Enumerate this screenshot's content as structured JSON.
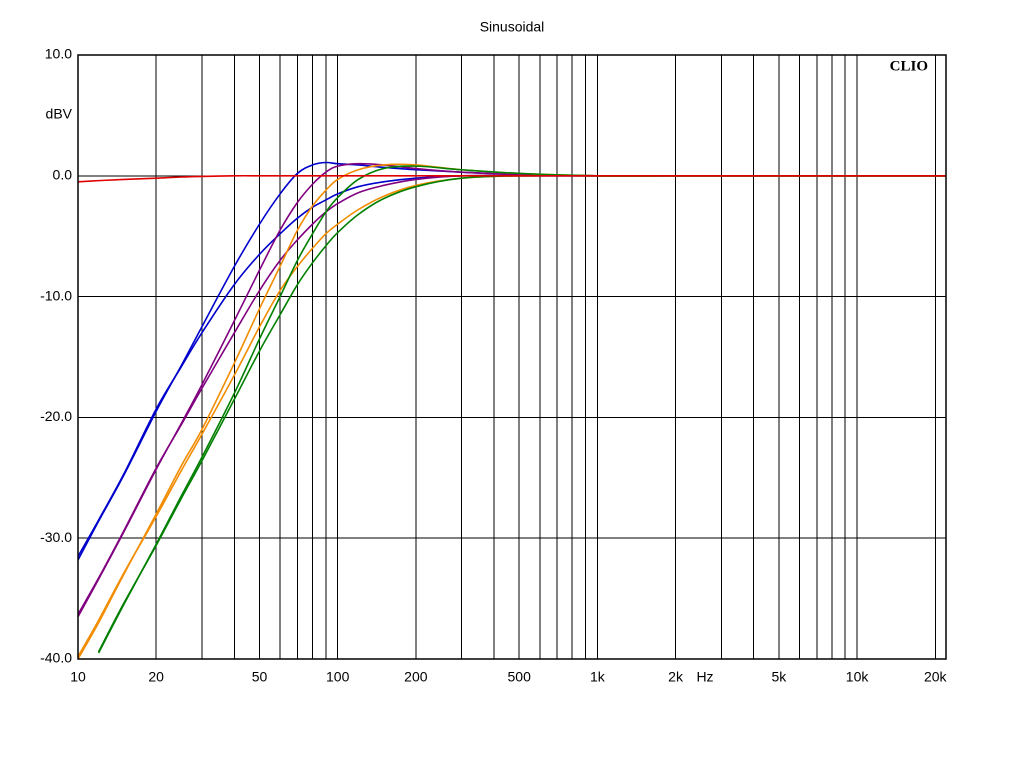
{
  "chart_data": {
    "type": "line",
    "title": "Sinusoidal",
    "watermark": "CLIO",
    "xlabel": "Hz",
    "ylabel": "dBV",
    "xscale": "log",
    "grid": true,
    "x": [
      10,
      12,
      15,
      20,
      25,
      30,
      40,
      50,
      60,
      70,
      80,
      90,
      100,
      120,
      150,
      200,
      300,
      500,
      1000,
      2000,
      5000,
      10000,
      20000,
      22000
    ],
    "xlim": [
      10,
      22000
    ],
    "xticks": [
      10,
      20,
      50,
      100,
      200,
      500,
      {
        "value": 1000,
        "label": "1k"
      },
      {
        "value": 2000,
        "label": "2k"
      },
      {
        "value": 5000,
        "label": "5k"
      },
      {
        "value": 10000,
        "label": "10k"
      },
      {
        "value": 20000,
        "label": "20k"
      }
    ],
    "xminorticks": [
      30,
      40,
      60,
      70,
      80,
      90,
      300,
      400,
      600,
      700,
      800,
      900,
      3000,
      4000,
      6000,
      7000,
      8000,
      9000
    ],
    "ylim": [
      -40,
      10
    ],
    "yticks": [
      {
        "value": 10,
        "label": "10.0"
      },
      {
        "value": 0,
        "label": "0.0"
      },
      {
        "value": -10,
        "label": "-10.0"
      },
      {
        "value": -20,
        "label": "-20.0"
      },
      {
        "value": -30,
        "label": "-30.0"
      },
      {
        "value": -40,
        "label": "-40.0"
      }
    ],
    "series": [
      {
        "color": "#0000cc",
        "values": [
          -31.8,
          -28.6,
          -24.8,
          -19.5,
          -15.7,
          -12.5,
          -7.5,
          -4,
          -1.5,
          0.2,
          0.9,
          1.1,
          1.0,
          0.9,
          0.7,
          0.5,
          0.3,
          0.1,
          0,
          0,
          0,
          0,
          0,
          0
        ]
      },
      {
        "color": "#0000cc",
        "values": [
          -31.5,
          -28.5,
          -24.7,
          -19.3,
          -15.8,
          -13,
          -9,
          -6.5,
          -4.8,
          -3.5,
          -2.6,
          -2,
          -1.5,
          -0.9,
          -0.5,
          -0.2,
          0,
          0,
          0,
          0,
          0,
          0,
          0,
          0
        ]
      },
      {
        "color": "#800080",
        "values": [
          -36.5,
          -33.4,
          -29.5,
          -24.3,
          -20.5,
          -17.3,
          -12,
          -7.8,
          -4.5,
          -2.2,
          -0.7,
          0.3,
          0.8,
          1.0,
          0.9,
          0.6,
          0.3,
          0.1,
          0,
          0,
          0,
          0,
          0,
          0
        ]
      },
      {
        "color": "#800080",
        "values": [
          -36.3,
          -33.3,
          -29.4,
          -24.2,
          -20.6,
          -17.6,
          -13,
          -9.5,
          -7,
          -5.3,
          -4,
          -3,
          -2.3,
          -1.4,
          -0.8,
          -0.3,
          0,
          0,
          0,
          0,
          0,
          0,
          0,
          0
        ]
      },
      {
        "color": "#f28c00",
        "values": [
          -40,
          -37,
          -33,
          -28,
          -24,
          -21,
          -15.5,
          -11,
          -7.5,
          -4.5,
          -2.5,
          -1.2,
          -0.3,
          0.5,
          0.9,
          0.9,
          0.5,
          0.2,
          0,
          0,
          0,
          0,
          0,
          0
        ]
      },
      {
        "color": "#f28c00",
        "values": [
          -39.8,
          -36.8,
          -32.9,
          -28.2,
          -24.4,
          -21.4,
          -16.5,
          -12.5,
          -9.5,
          -7.5,
          -6,
          -4.8,
          -4,
          -2.8,
          -1.7,
          -0.8,
          -0.2,
          0,
          0,
          0,
          0,
          0,
          0,
          0
        ]
      },
      {
        "color": "#008000",
        "values": [
          null,
          -39.5,
          -35.5,
          -30.5,
          -26.5,
          -23.3,
          -18,
          -13.5,
          -10,
          -7,
          -4.8,
          -3,
          -1.8,
          -0.3,
          0.6,
          0.8,
          0.5,
          0.2,
          0,
          0,
          0,
          0,
          0,
          0
        ]
      },
      {
        "color": "#008000",
        "values": [
          null,
          -39.4,
          -35.4,
          -30.6,
          -26.7,
          -23.6,
          -18.5,
          -14.5,
          -11.5,
          -9,
          -7.2,
          -5.8,
          -4.7,
          -3.2,
          -1.9,
          -0.9,
          -0.2,
          0,
          0,
          0,
          0,
          0,
          0,
          0
        ]
      },
      {
        "color": "#e00000",
        "values": [
          -0.5,
          -0.4,
          -0.3,
          -0.2,
          -0.1,
          -0.05,
          0,
          0,
          0,
          0,
          0,
          0,
          0,
          0,
          0,
          0,
          0,
          0,
          0,
          0,
          0,
          0,
          0,
          0
        ]
      }
    ]
  }
}
